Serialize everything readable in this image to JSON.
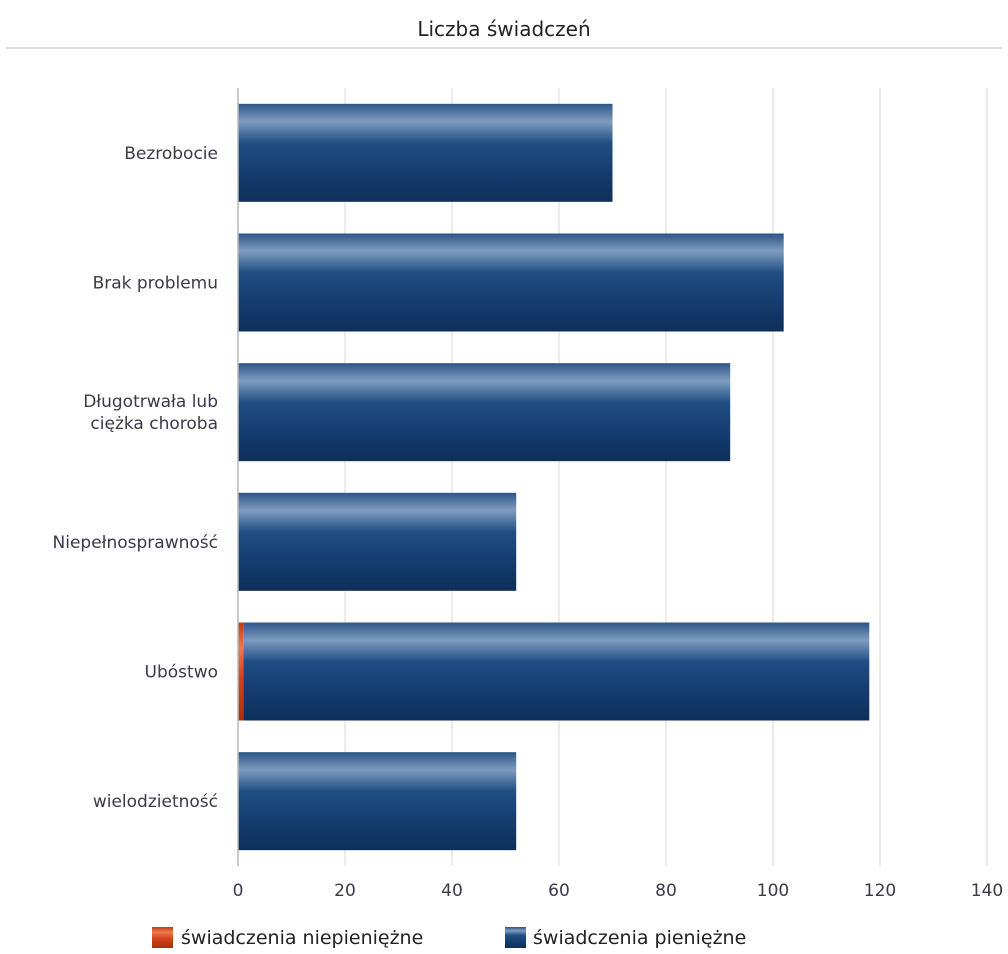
{
  "chart_data": {
    "type": "bar",
    "orientation": "horizontal",
    "stacked": true,
    "title": "Liczba świadczeń",
    "categories": [
      [
        "Bezrobocie"
      ],
      [
        "Brak problemu"
      ],
      [
        "Długotrwała lub",
        "ciężka choroba"
      ],
      [
        "Niepełnosprawność"
      ],
      [
        "Ubóstwo"
      ],
      [
        "wielodzietność"
      ]
    ],
    "series": [
      {
        "name": "świadczenia niepieniężne",
        "color": "#d4441c",
        "values": [
          0,
          0,
          0,
          0,
          1,
          0
        ]
      },
      {
        "name": "świadczenia pieniężne",
        "color": "#1f4e83",
        "values": [
          70,
          102,
          92,
          52,
          117,
          52
        ]
      }
    ],
    "xlim": [
      0,
      140
    ],
    "xticks": [
      0,
      20,
      40,
      60,
      80,
      100,
      120,
      140
    ],
    "grid": true,
    "legend_position": "bottom"
  }
}
